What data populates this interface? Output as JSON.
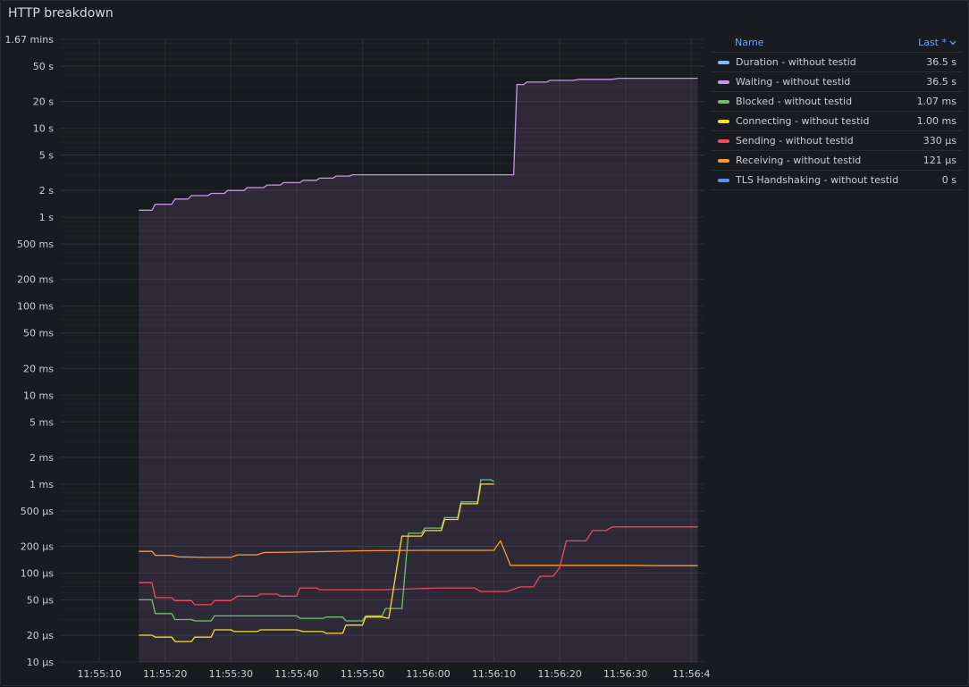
{
  "panel": {
    "title": "HTTP breakdown"
  },
  "legend": {
    "header_name": "Name",
    "header_value": "Last *",
    "sort_icon": "chevron-down-icon",
    "items": [
      {
        "name": "Duration - without testid",
        "value": "36.5 s",
        "color": "#8ab8ff"
      },
      {
        "name": "Waiting - without testid",
        "value": "36.5 s",
        "color": "#ca95e5"
      },
      {
        "name": "Blocked - without testid",
        "value": "1.07 ms",
        "color": "#73bf69"
      },
      {
        "name": "Connecting - without testid",
        "value": "1.00 ms",
        "color": "#fade2a"
      },
      {
        "name": "Sending - without testid",
        "value": "330 µs",
        "color": "#f2495c"
      },
      {
        "name": "Receiving - without testid",
        "value": "121 µs",
        "color": "#ff9830"
      },
      {
        "name": "TLS Handshaking - without testid",
        "value": "0 s",
        "color": "#5794f2"
      }
    ]
  },
  "chart_data": {
    "type": "line",
    "y_scale": "log",
    "y_unit": "seconds",
    "ylim": [
      1e-05,
      100
    ],
    "xlim": [
      "11:55:04",
      "11:56:42"
    ],
    "grid": true,
    "legend_position": "right",
    "x_ticks": [
      {
        "t": "11:55:10",
        "label": "11:55:10"
      },
      {
        "t": "11:55:20",
        "label": "11:55:20"
      },
      {
        "t": "11:55:30",
        "label": "11:55:30"
      },
      {
        "t": "11:55:40",
        "label": "11:55:40"
      },
      {
        "t": "11:55:50",
        "label": "11:55:50"
      },
      {
        "t": "11:56:00",
        "label": "11:56:00"
      },
      {
        "t": "11:56:10",
        "label": "11:56:10"
      },
      {
        "t": "11:56:20",
        "label": "11:56:20"
      },
      {
        "t": "11:56:30",
        "label": "11:56:30"
      },
      {
        "t": "11:56:40",
        "label": "11:56:4"
      }
    ],
    "y_ticks": [
      {
        "v": 100,
        "label": "1.67 mins"
      },
      {
        "v": 50,
        "label": "50 s"
      },
      {
        "v": 20,
        "label": "20 s"
      },
      {
        "v": 10,
        "label": "10 s"
      },
      {
        "v": 5,
        "label": "5 s"
      },
      {
        "v": 2,
        "label": "2 s"
      },
      {
        "v": 1,
        "label": "1 s"
      },
      {
        "v": 0.5,
        "label": "500 ms"
      },
      {
        "v": 0.2,
        "label": "200 ms"
      },
      {
        "v": 0.1,
        "label": "100 ms"
      },
      {
        "v": 0.05,
        "label": "50 ms"
      },
      {
        "v": 0.02,
        "label": "20 ms"
      },
      {
        "v": 0.01,
        "label": "10 ms"
      },
      {
        "v": 0.005,
        "label": "5 ms"
      },
      {
        "v": 0.002,
        "label": "2 ms"
      },
      {
        "v": 0.001,
        "label": "1 ms"
      },
      {
        "v": 0.0005,
        "label": "500 µs"
      },
      {
        "v": 0.0002,
        "label": "200 µs"
      },
      {
        "v": 0.0001,
        "label": "100 µs"
      },
      {
        "v": 5e-05,
        "label": "50 µs"
      },
      {
        "v": 2e-05,
        "label": "20 µs"
      },
      {
        "v": 1e-05,
        "label": "10 µs"
      }
    ],
    "series": [
      {
        "name": "Waiting - without testid",
        "color": "#ca95e5",
        "fill": true,
        "points": [
          [
            "11:55:16",
            1.2
          ],
          [
            "11:55:18",
            1.2
          ],
          [
            "11:55:18.5",
            1.4
          ],
          [
            "11:55:21",
            1.4
          ],
          [
            "11:55:21.5",
            1.6
          ],
          [
            "11:55:23.5",
            1.6
          ],
          [
            "11:55:24",
            1.75
          ],
          [
            "11:55:26.5",
            1.75
          ],
          [
            "11:55:27",
            1.85
          ],
          [
            "11:55:29",
            1.85
          ],
          [
            "11:55:29.5",
            2.0
          ],
          [
            "11:55:32",
            2.0
          ],
          [
            "11:55:32.5",
            2.15
          ],
          [
            "11:55:35",
            2.15
          ],
          [
            "11:55:35.5",
            2.3
          ],
          [
            "11:55:37.5",
            2.3
          ],
          [
            "11:55:38",
            2.45
          ],
          [
            "11:55:40.5",
            2.45
          ],
          [
            "11:55:41",
            2.6
          ],
          [
            "11:55:43",
            2.6
          ],
          [
            "11:55:43.5",
            2.75
          ],
          [
            "11:55:45.5",
            2.75
          ],
          [
            "11:55:46",
            2.9
          ],
          [
            "11:55:48",
            2.9
          ],
          [
            "11:55:48.5",
            3.0
          ],
          [
            "11:55:51",
            3.0
          ],
          [
            "11:56:13",
            3.0
          ],
          [
            "11:56:13.5",
            31
          ],
          [
            "11:56:14.5",
            31
          ],
          [
            "11:56:15",
            33
          ],
          [
            "11:56:18",
            33
          ],
          [
            "11:56:18.5",
            34.5
          ],
          [
            "11:56:22",
            34.5
          ],
          [
            "11:56:23",
            35.5
          ],
          [
            "11:56:28",
            35.5
          ],
          [
            "11:56:29",
            36.5
          ],
          [
            "11:56:41",
            36.5
          ]
        ]
      },
      {
        "name": "Receiving - without testid",
        "color": "#ff9830",
        "fill": false,
        "points": [
          [
            "11:55:16",
            0.000175
          ],
          [
            "11:55:18",
            0.000175
          ],
          [
            "11:55:18.5",
            0.000158
          ],
          [
            "11:55:21",
            0.000158
          ],
          [
            "11:55:22",
            0.000152
          ],
          [
            "11:55:26",
            0.00015
          ],
          [
            "11:55:30",
            0.00015
          ],
          [
            "11:55:31",
            0.00016
          ],
          [
            "11:55:34",
            0.00016
          ],
          [
            "11:55:35",
            0.00017
          ],
          [
            "11:55:40",
            0.000172
          ],
          [
            "11:55:50",
            0.000178
          ],
          [
            "11:56:00",
            0.00018
          ],
          [
            "11:56:10",
            0.00018
          ],
          [
            "11:56:11",
            0.00023
          ],
          [
            "11:56:12.5",
            0.000122
          ],
          [
            "11:56:20",
            0.000122
          ],
          [
            "11:56:30",
            0.000122
          ],
          [
            "11:56:35",
            0.000121
          ],
          [
            "11:56:41",
            0.000121
          ]
        ]
      },
      {
        "name": "Sending - without testid",
        "color": "#f2495c",
        "fill": false,
        "points": [
          [
            "11:55:16",
            7.8e-05
          ],
          [
            "11:55:18",
            7.8e-05
          ],
          [
            "11:55:18.5",
            5.3e-05
          ],
          [
            "11:55:21",
            5.3e-05
          ],
          [
            "11:55:21.5",
            4.9e-05
          ],
          [
            "11:55:24",
            4.9e-05
          ],
          [
            "11:55:24.5",
            4.4e-05
          ],
          [
            "11:55:27",
            4.4e-05
          ],
          [
            "11:55:27.5",
            4.9e-05
          ],
          [
            "11:55:30",
            4.9e-05
          ],
          [
            "11:55:31",
            5.5e-05
          ],
          [
            "11:55:34",
            5.5e-05
          ],
          [
            "11:55:34.5",
            5.8e-05
          ],
          [
            "11:55:37",
            5.8e-05
          ],
          [
            "11:55:37.5",
            5.5e-05
          ],
          [
            "11:55:40",
            5.5e-05
          ],
          [
            "11:55:40.5",
            6.8e-05
          ],
          [
            "11:55:43",
            6.8e-05
          ],
          [
            "11:55:43.5",
            6.5e-05
          ],
          [
            "11:55:53",
            6.5e-05
          ],
          [
            "11:56:02",
            6.8e-05
          ],
          [
            "11:56:07",
            6.8e-05
          ],
          [
            "11:56:08",
            6.2e-05
          ],
          [
            "11:56:12",
            6.2e-05
          ],
          [
            "11:56:14",
            7e-05
          ],
          [
            "11:56:16",
            7e-05
          ],
          [
            "11:56:17",
            9.2e-05
          ],
          [
            "11:56:19",
            9.2e-05
          ],
          [
            "11:56:20",
            0.000115
          ],
          [
            "11:56:21",
            0.00023
          ],
          [
            "11:56:24",
            0.00023
          ],
          [
            "11:56:25",
            0.0003
          ],
          [
            "11:56:27",
            0.0003
          ],
          [
            "11:56:28",
            0.00033
          ],
          [
            "11:56:41",
            0.00033
          ]
        ]
      },
      {
        "name": "Blocked - without testid",
        "color": "#73bf69",
        "fill": false,
        "points": [
          [
            "11:55:16",
            5e-05
          ],
          [
            "11:55:18",
            5e-05
          ],
          [
            "11:55:18.5",
            3.5e-05
          ],
          [
            "11:55:21",
            3.5e-05
          ],
          [
            "11:55:21.5",
            3e-05
          ],
          [
            "11:55:24",
            3e-05
          ],
          [
            "11:55:24.5",
            2.9e-05
          ],
          [
            "11:55:27",
            2.9e-05
          ],
          [
            "11:55:27.5",
            3.3e-05
          ],
          [
            "11:55:40",
            3.3e-05
          ],
          [
            "11:55:40.5",
            3.1e-05
          ],
          [
            "11:55:44",
            3.1e-05
          ],
          [
            "11:55:44.5",
            3.2e-05
          ],
          [
            "11:55:47",
            3.2e-05
          ],
          [
            "11:55:47.5",
            2.9e-05
          ],
          [
            "11:55:50",
            2.9e-05
          ],
          [
            "11:55:50.5",
            3.3e-05
          ],
          [
            "11:55:53",
            3.3e-05
          ],
          [
            "11:55:53.5",
            4e-05
          ],
          [
            "11:55:56",
            4e-05
          ],
          [
            "11:55:57",
            0.00028
          ],
          [
            "11:55:59",
            0.00028
          ],
          [
            "11:55:59.5",
            0.00032
          ],
          [
            "11:56:02",
            0.00032
          ],
          [
            "11:56:02.5",
            0.00042
          ],
          [
            "11:56:04.5",
            0.00042
          ],
          [
            "11:56:05",
            0.00063
          ],
          [
            "11:56:07.5",
            0.00063
          ],
          [
            "11:56:08",
            0.00112
          ],
          [
            "11:56:09.5",
            0.00112
          ],
          [
            "11:56:10",
            0.00107
          ]
        ]
      },
      {
        "name": "Connecting - without testid",
        "color": "#fade2a",
        "fill": false,
        "points": [
          [
            "11:55:16",
            2e-05
          ],
          [
            "11:55:18",
            2e-05
          ],
          [
            "11:55:18.5",
            1.9e-05
          ],
          [
            "11:55:21",
            1.9e-05
          ],
          [
            "11:55:21.5",
            1.7e-05
          ],
          [
            "11:55:24",
            1.7e-05
          ],
          [
            "11:55:24.5",
            1.9e-05
          ],
          [
            "11:55:27",
            1.9e-05
          ],
          [
            "11:55:27.5",
            2.3e-05
          ],
          [
            "11:55:30",
            2.3e-05
          ],
          [
            "11:55:30.5",
            2.2e-05
          ],
          [
            "11:55:34",
            2.2e-05
          ],
          [
            "11:55:34.5",
            2.3e-05
          ],
          [
            "11:55:40",
            2.3e-05
          ],
          [
            "11:55:41",
            2.2e-05
          ],
          [
            "11:55:44",
            2.2e-05
          ],
          [
            "11:55:44.5",
            2.1e-05
          ],
          [
            "11:55:47",
            2.1e-05
          ],
          [
            "11:55:47.5",
            2.6e-05
          ],
          [
            "11:55:50",
            2.6e-05
          ],
          [
            "11:55:50.5",
            3.2e-05
          ],
          [
            "11:55:53",
            3.2e-05
          ],
          [
            "11:55:54",
            3.1e-05
          ],
          [
            "11:55:56",
            0.00026
          ],
          [
            "11:55:59",
            0.00026
          ],
          [
            "11:55:59.5",
            0.0003
          ],
          [
            "11:56:02",
            0.0003
          ],
          [
            "11:56:02.5",
            0.0004
          ],
          [
            "11:56:04.5",
            0.0004
          ],
          [
            "11:56:05",
            0.0006
          ],
          [
            "11:56:07.5",
            0.0006
          ],
          [
            "11:56:08",
            0.001
          ],
          [
            "11:56:10",
            0.001
          ]
        ]
      }
    ]
  }
}
